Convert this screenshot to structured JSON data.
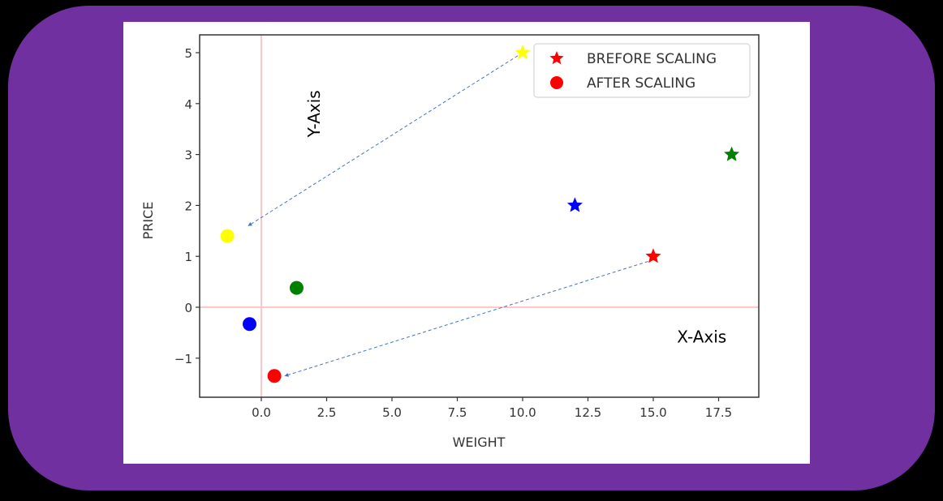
{
  "colors": {
    "panel": "#7030A0",
    "background": "#000000",
    "figure": "#ffffff",
    "annotation_arrow": "#4472C4",
    "reference_lines": "#ffc8c8"
  },
  "chart_data": {
    "type": "scatter",
    "title": "",
    "xlabel": "WEIGHT",
    "ylabel": "PRICE",
    "xlim": [
      -2.3,
      19.1
    ],
    "ylim": [
      -1.77,
      5.35
    ],
    "xticks": [
      "0.0",
      "2.5",
      "5.0",
      "7.5",
      "10.0",
      "12.5",
      "15.0",
      "17.5"
    ],
    "xtick_values": [
      0,
      2.5,
      5,
      7.5,
      10,
      12.5,
      15,
      17.5
    ],
    "yticks": [
      "−1",
      "0",
      "1",
      "2",
      "3",
      "4",
      "5"
    ],
    "ytick_values": [
      -1,
      0,
      1,
      2,
      3,
      4,
      5
    ],
    "grid": false,
    "legend_position": "upper right",
    "legend": [
      {
        "label": "BREFORE SCALING",
        "marker": "star",
        "color": "#ff0000"
      },
      {
        "label": "AFTER SCALING",
        "marker": "circle",
        "color": "#ff0000"
      }
    ],
    "series": [
      {
        "name": "BREFORE SCALING",
        "marker": "star",
        "points": [
          {
            "x": 10,
            "y": 5,
            "color": "#ffff00"
          },
          {
            "x": 12,
            "y": 2,
            "color": "#0000ff"
          },
          {
            "x": 18,
            "y": 3,
            "color": "#008000"
          },
          {
            "x": 15,
            "y": 1,
            "color": "#ff0000"
          }
        ]
      },
      {
        "name": "AFTER SCALING",
        "marker": "circle",
        "points": [
          {
            "x": -1.3,
            "y": 1.4,
            "color": "#ffff00"
          },
          {
            "x": -0.45,
            "y": -0.33,
            "color": "#0000ff"
          },
          {
            "x": 1.35,
            "y": 0.38,
            "color": "#008000"
          },
          {
            "x": 0.5,
            "y": -1.35,
            "color": "#ff0000"
          }
        ]
      }
    ],
    "reference_lines": [
      {
        "axis": "x",
        "value": 0
      },
      {
        "axis": "y",
        "value": 0
      }
    ],
    "annotations": [
      {
        "text": "Y-Axis",
        "rotation": -90,
        "x": 1,
        "y": 3.8
      },
      {
        "text": "X-Axis",
        "x": 16.7,
        "y": -0.55
      }
    ],
    "arrows": [
      {
        "from": [
          10,
          5
        ],
        "to": [
          -0.5,
          1.6
        ]
      },
      {
        "from": [
          14.8,
          0.9
        ],
        "to": [
          0.9,
          -1.35
        ]
      }
    ]
  }
}
